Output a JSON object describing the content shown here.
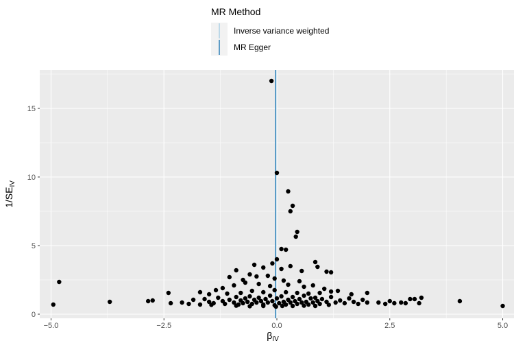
{
  "chart_data": {
    "type": "scatter",
    "title": "",
    "xlabel": "β",
    "xlabel_sub": "IV",
    "ylabel": "1/SE",
    "ylabel_sub": "IV",
    "xlim": [
      -5.25,
      5.25
    ],
    "ylim": [
      -0.3,
      17.8
    ],
    "x_ticks": [
      -5.0,
      -2.5,
      0.0,
      2.5,
      5.0
    ],
    "x_tick_labels": [
      "−5.0",
      "−2.5",
      "0.0",
      "2.5",
      "5.0"
    ],
    "y_ticks": [
      0,
      5,
      10,
      15
    ],
    "y_tick_labels": [
      "0",
      "5",
      "10",
      "15"
    ],
    "grid": true,
    "colors": {
      "panel": "#ebebeb",
      "grid": "#ffffff",
      "points": "#000000",
      "ivw": "#a6cee3",
      "egger": "#1f78b4"
    },
    "legend": {
      "title": "MR Method",
      "placement": "top",
      "entries": [
        {
          "label": "Inverse variance weighted",
          "color": "#a6cee3"
        },
        {
          "label": "MR Egger",
          "color": "#1f78b4"
        }
      ]
    },
    "lines": [
      {
        "method": "Inverse variance weighted",
        "type": "vertical",
        "x": -0.02,
        "color": "#a6cee3"
      },
      {
        "method": "MR Egger",
        "type": "vertical",
        "x": -0.03,
        "color": "#1f78b4"
      }
    ],
    "points": [
      [
        -0.12,
        17.0
      ],
      [
        0.0,
        10.3
      ],
      [
        0.25,
        8.95
      ],
      [
        0.35,
        7.9
      ],
      [
        0.3,
        7.5
      ],
      [
        0.45,
        6.0
      ],
      [
        0.42,
        5.65
      ],
      [
        0.1,
        4.75
      ],
      [
        0.2,
        4.7
      ],
      [
        0.0,
        4.0
      ],
      [
        -0.5,
        3.6
      ],
      [
        -0.1,
        3.7
      ],
      [
        0.3,
        3.5
      ],
      [
        0.85,
        3.8
      ],
      [
        0.9,
        3.45
      ],
      [
        -4.82,
        2.35
      ],
      [
        -1.05,
        2.7
      ],
      [
        -0.9,
        3.2
      ],
      [
        -0.3,
        3.4
      ],
      [
        0.1,
        3.3
      ],
      [
        -0.6,
        2.9
      ],
      [
        -0.45,
        2.75
      ],
      [
        -0.2,
        2.8
      ],
      [
        0.55,
        3.15
      ],
      [
        1.1,
        3.1
      ],
      [
        1.2,
        3.05
      ],
      [
        -0.05,
        2.6
      ],
      [
        0.15,
        2.45
      ],
      [
        0.5,
        2.4
      ],
      [
        -0.75,
        2.5
      ],
      [
        -1.2,
        1.9
      ],
      [
        -1.35,
        1.75
      ],
      [
        -0.95,
        2.1
      ],
      [
        -0.7,
        2.3
      ],
      [
        -0.4,
        2.2
      ],
      [
        -0.15,
        2.05
      ],
      [
        0.25,
        2.15
      ],
      [
        0.6,
        2.0
      ],
      [
        0.8,
        2.1
      ],
      [
        1.05,
        1.85
      ],
      [
        -2.4,
        1.55
      ],
      [
        -1.7,
        1.6
      ],
      [
        -1.5,
        1.45
      ],
      [
        -1.1,
        1.5
      ],
      [
        -0.8,
        1.55
      ],
      [
        -0.55,
        1.7
      ],
      [
        -0.3,
        1.6
      ],
      [
        -0.05,
        1.75
      ],
      [
        0.2,
        1.6
      ],
      [
        0.45,
        1.55
      ],
      [
        0.7,
        1.5
      ],
      [
        0.95,
        1.55
      ],
      [
        1.2,
        1.65
      ],
      [
        1.35,
        1.7
      ],
      [
        1.65,
        1.45
      ],
      [
        2.0,
        1.55
      ],
      [
        -4.95,
        0.7
      ],
      [
        -3.7,
        0.9
      ],
      [
        -2.85,
        0.95
      ],
      [
        -2.75,
        1.0
      ],
      [
        -2.35,
        0.8
      ],
      [
        -2.1,
        0.85
      ],
      [
        -1.95,
        0.75
      ],
      [
        -1.85,
        1.05
      ],
      [
        -1.7,
        0.7
      ],
      [
        -1.6,
        1.1
      ],
      [
        -1.5,
        0.9
      ],
      [
        -1.4,
        0.8
      ],
      [
        -1.3,
        1.2
      ],
      [
        -1.2,
        0.95
      ],
      [
        -1.15,
        0.75
      ],
      [
        -1.05,
        1.05
      ],
      [
        -0.95,
        0.85
      ],
      [
        -0.9,
        1.25
      ],
      [
        -0.85,
        0.7
      ],
      [
        -0.8,
        1.0
      ],
      [
        -0.75,
        0.8
      ],
      [
        -0.7,
        1.15
      ],
      [
        -0.65,
        0.9
      ],
      [
        -0.6,
        1.3
      ],
      [
        -0.55,
        0.75
      ],
      [
        -0.5,
        1.05
      ],
      [
        -0.45,
        0.85
      ],
      [
        -0.4,
        1.2
      ],
      [
        -0.35,
        0.95
      ],
      [
        -0.3,
        0.7
      ],
      [
        -0.25,
        1.1
      ],
      [
        -0.2,
        0.85
      ],
      [
        -0.15,
        1.35
      ],
      [
        -0.1,
        0.95
      ],
      [
        -0.05,
        0.65
      ],
      [
        0.0,
        1.15
      ],
      [
        0.05,
        0.8
      ],
      [
        0.1,
        1.3
      ],
      [
        0.15,
        0.9
      ],
      [
        0.2,
        0.7
      ],
      [
        0.25,
        1.05
      ],
      [
        0.3,
        0.85
      ],
      [
        0.35,
        1.25
      ],
      [
        0.4,
        0.95
      ],
      [
        0.45,
        0.75
      ],
      [
        0.5,
        1.1
      ],
      [
        0.55,
        0.85
      ],
      [
        0.6,
        1.35
      ],
      [
        0.65,
        0.9
      ],
      [
        0.7,
        0.7
      ],
      [
        0.75,
        1.15
      ],
      [
        0.8,
        0.85
      ],
      [
        0.85,
        1.2
      ],
      [
        0.9,
        0.95
      ],
      [
        0.95,
        0.75
      ],
      [
        1.0,
        1.1
      ],
      [
        1.1,
        0.9
      ],
      [
        1.2,
        1.25
      ],
      [
        1.3,
        0.85
      ],
      [
        1.4,
        1.0
      ],
      [
        1.5,
        0.8
      ],
      [
        1.6,
        1.15
      ],
      [
        1.7,
        0.9
      ],
      [
        1.8,
        0.75
      ],
      [
        1.9,
        1.05
      ],
      [
        2.0,
        0.85
      ],
      [
        2.25,
        0.85
      ],
      [
        2.4,
        0.75
      ],
      [
        2.5,
        0.95
      ],
      [
        2.6,
        0.8
      ],
      [
        2.75,
        0.85
      ],
      [
        2.85,
        0.8
      ],
      [
        2.95,
        1.1
      ],
      [
        3.05,
        1.1
      ],
      [
        3.15,
        0.8
      ],
      [
        3.2,
        1.2
      ],
      [
        4.05,
        0.95
      ],
      [
        5.0,
        0.6
      ],
      [
        -0.02,
        0.55
      ],
      [
        0.12,
        0.6
      ],
      [
        -0.3,
        0.6
      ],
      [
        0.6,
        0.62
      ],
      [
        -0.9,
        0.62
      ],
      [
        1.15,
        0.68
      ],
      [
        -1.45,
        0.68
      ],
      [
        0.35,
        0.6
      ],
      [
        -0.6,
        0.58
      ],
      [
        0.85,
        0.6
      ]
    ]
  }
}
